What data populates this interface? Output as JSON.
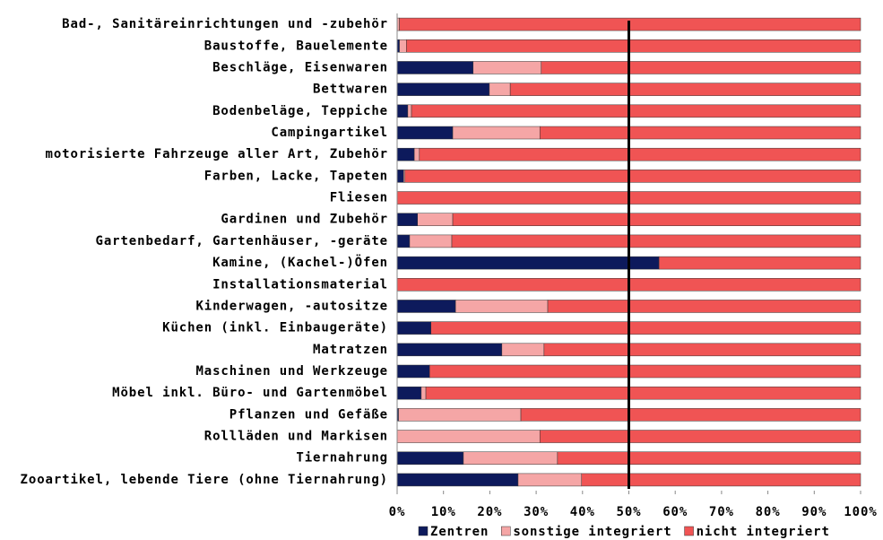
{
  "chart_data": {
    "type": "stacked_barh",
    "categories": [
      "Bad-, Sanitäreinrichtungen und -zubehör",
      "Baustoffe, Bauelemente",
      "Beschläge, Eisenwaren",
      "Bettwaren",
      "Bodenbeläge, Teppiche",
      "Campingartikel",
      "motorisierte Fahrzeuge aller Art, Zubehör",
      "Farben, Lacke, Tapeten",
      "Fliesen",
      "Gardinen und Zubehör",
      "Gartenbedarf, Gartenhäuser, -geräte",
      "Kamine, (Kachel-)Öfen",
      "Installationsmaterial",
      "Kinderwagen, -autositze",
      "Küchen (inkl. Einbaugeräte)",
      "Matratzen",
      "Maschinen und Werkzeuge",
      "Möbel inkl. Büro- und Gartenmöbel",
      "Pflanzen und Gefäße",
      "Rollläden und Markisen",
      "Tiernahrung",
      "Zooartikel, lebende Tiere (ohne Tiernahrung)"
    ],
    "series": [
      {
        "name": "Zentren",
        "color": "#0d1a5c",
        "values": [
          0,
          0.5,
          16.4,
          19.9,
          2.3,
          12,
          3.7,
          1.4,
          0,
          4.4,
          2.7,
          56.5,
          0,
          12.6,
          7.3,
          22.6,
          7,
          5.2,
          0.3,
          0,
          14.3,
          26.1
        ]
      },
      {
        "name": "sonstige integriert",
        "color": "#f5a6a6",
        "values": [
          0.5,
          1.5,
          14.7,
          4.5,
          0.8,
          18.8,
          1.1,
          0.3,
          0,
          7.6,
          9.1,
          0,
          0,
          19.9,
          0,
          9.1,
          0,
          1,
          26.4,
          30.8,
          20.3,
          13.7
        ]
      },
      {
        "name": "nicht integriert",
        "color": "#f05454",
        "values": [
          99.5,
          98,
          68.9,
          75.6,
          96.9,
          69.2,
          95.2,
          98.3,
          100,
          88,
          88.2,
          43.5,
          100,
          67.5,
          92.7,
          68.3,
          93,
          93.8,
          73.3,
          69.2,
          65.4,
          60.2
        ]
      }
    ],
    "xlim": [
      0,
      100
    ],
    "xticks": [
      {
        "value": 0,
        "label": "0%"
      },
      {
        "value": 10,
        "label": "10%"
      },
      {
        "value": 20,
        "label": "20%"
      },
      {
        "value": 30,
        "label": "30%"
      },
      {
        "value": 40,
        "label": "40%"
      },
      {
        "value": 50,
        "label": "50%"
      },
      {
        "value": 60,
        "label": "60%"
      },
      {
        "value": 70,
        "label": "70%"
      },
      {
        "value": 80,
        "label": "80%"
      },
      {
        "value": 90,
        "label": "90%"
      },
      {
        "value": 100,
        "label": "100%"
      }
    ],
    "reference_line": 50,
    "legend": "bottom"
  }
}
